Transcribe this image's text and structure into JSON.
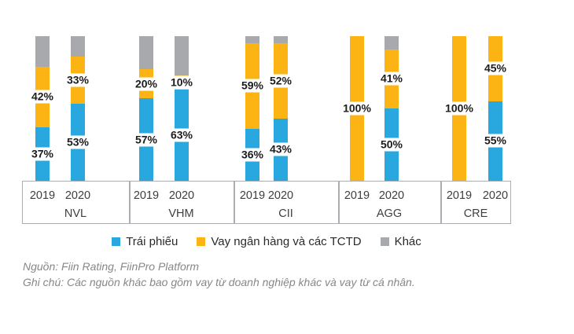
{
  "chart_data": {
    "type": "bar",
    "stacked": true,
    "unit": "percent",
    "ylim": [
      0,
      100
    ],
    "grid": false,
    "legend_position": "bottom",
    "series": [
      {
        "key": "trai_phieu",
        "name": "Trái phiếu",
        "color": "#29A8DF"
      },
      {
        "key": "vay_tctd",
        "name": "Vay ngân hàng và các TCTD",
        "color": "#FCB415"
      },
      {
        "key": "khac",
        "name": "Khác",
        "color": "#A7A9AC"
      }
    ],
    "groups": [
      {
        "company": "NVL",
        "bars": [
          {
            "year": "2019",
            "values": {
              "trai_phieu": 37,
              "vay_tctd": 42,
              "khac": 21
            },
            "labels": {
              "trai_phieu": "37%",
              "vay_tctd": "42%"
            }
          },
          {
            "year": "2020",
            "values": {
              "trai_phieu": 53,
              "vay_tctd": 33,
              "khac": 14
            },
            "labels": {
              "trai_phieu": "53%",
              "vay_tctd": "33%"
            }
          }
        ]
      },
      {
        "company": "VHM",
        "bars": [
          {
            "year": "2019",
            "values": {
              "trai_phieu": 57,
              "vay_tctd": 20,
              "khac": 23
            },
            "labels": {
              "trai_phieu": "57%",
              "vay_tctd": "20%"
            }
          },
          {
            "year": "2020",
            "values": {
              "trai_phieu": 63,
              "vay_tctd": 10,
              "khac": 27
            },
            "labels": {
              "trai_phieu": "63%",
              "vay_tctd": "10%"
            }
          }
        ]
      },
      {
        "company": "CII",
        "bars": [
          {
            "year": "2019",
            "values": {
              "trai_phieu": 36,
              "vay_tctd": 59,
              "khac": 5
            },
            "labels": {
              "trai_phieu": "36%",
              "vay_tctd": "59%"
            }
          },
          {
            "year": "2020",
            "values": {
              "trai_phieu": 43,
              "vay_tctd": 52,
              "khac": 5
            },
            "labels": {
              "trai_phieu": "43%",
              "vay_tctd": "52%"
            }
          }
        ]
      },
      {
        "company": "AGG",
        "bars": [
          {
            "year": "2019",
            "values": {
              "trai_phieu": 0,
              "vay_tctd": 100,
              "khac": 0
            },
            "labels": {
              "vay_tctd": "100%"
            }
          },
          {
            "year": "2020",
            "values": {
              "trai_phieu": 50,
              "vay_tctd": 41,
              "khac": 9
            },
            "labels": {
              "trai_phieu": "50%",
              "vay_tctd": "41%"
            }
          }
        ]
      },
      {
        "company": "CRE",
        "bars": [
          {
            "year": "2019",
            "values": {
              "trai_phieu": 0,
              "vay_tctd": 100,
              "khac": 0
            },
            "labels": {
              "vay_tctd": "100%"
            }
          },
          {
            "year": "2020",
            "values": {
              "trai_phieu": 55,
              "vay_tctd": 45,
              "khac": 0
            },
            "labels": {
              "trai_phieu": "55%",
              "vay_tctd": "45%"
            }
          }
        ]
      }
    ]
  },
  "notes": {
    "source": "Nguồn: Fiin Rating, FiinPro Platform",
    "note": "Ghi chú: Các nguồn khác bao gồm vay từ doanh nghiệp khác và vay từ cá nhân."
  }
}
